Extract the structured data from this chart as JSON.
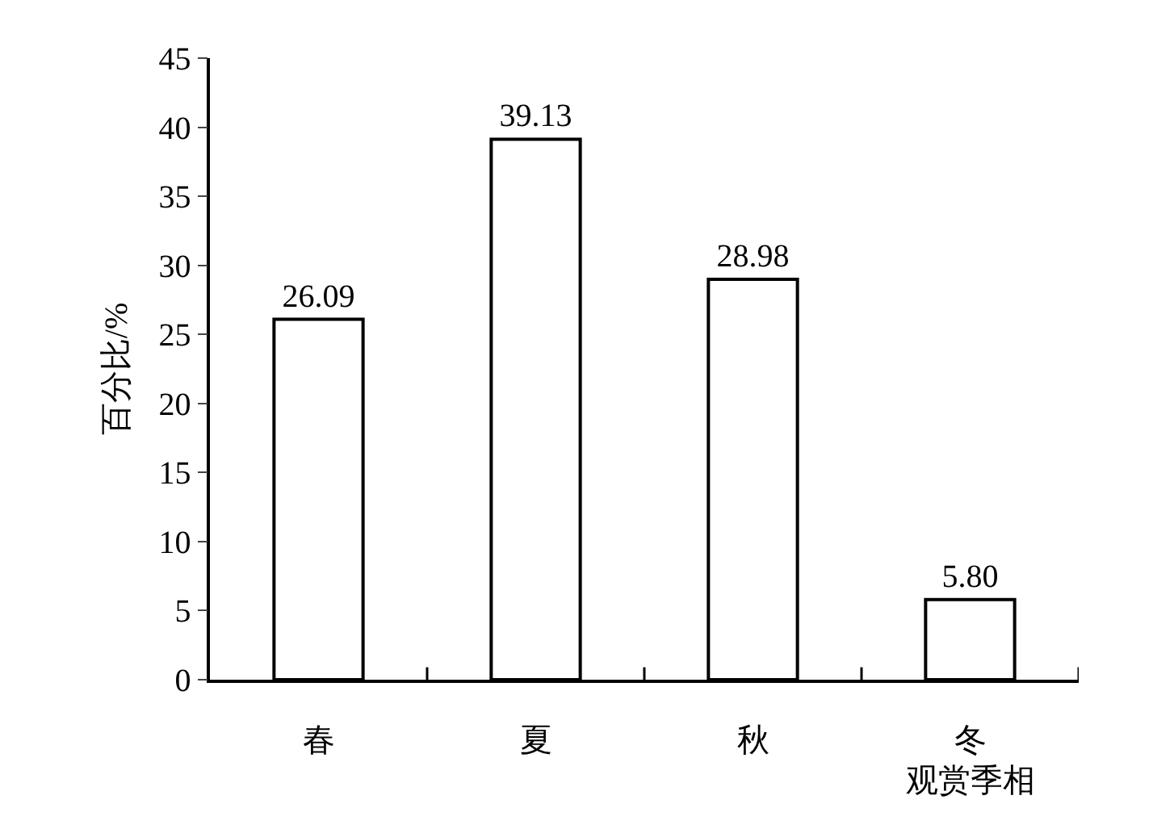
{
  "chart_data": {
    "type": "bar",
    "xlabel": "观赏季相",
    "ylabel": "百分比/%",
    "categories": [
      "春",
      "夏",
      "秋",
      "冬"
    ],
    "series": [
      {
        "color": "#ffffff",
        "values": [
          26.09,
          39.13,
          28.98,
          5.8
        ],
        "value_labels": [
          "26.09",
          "39.13",
          "28.98",
          "5.80"
        ]
      }
    ],
    "ylim": [
      0,
      45
    ],
    "yticks": [
      0,
      5,
      10,
      15,
      20,
      25,
      30,
      35,
      40,
      45
    ],
    "grid": false,
    "legend": false
  }
}
